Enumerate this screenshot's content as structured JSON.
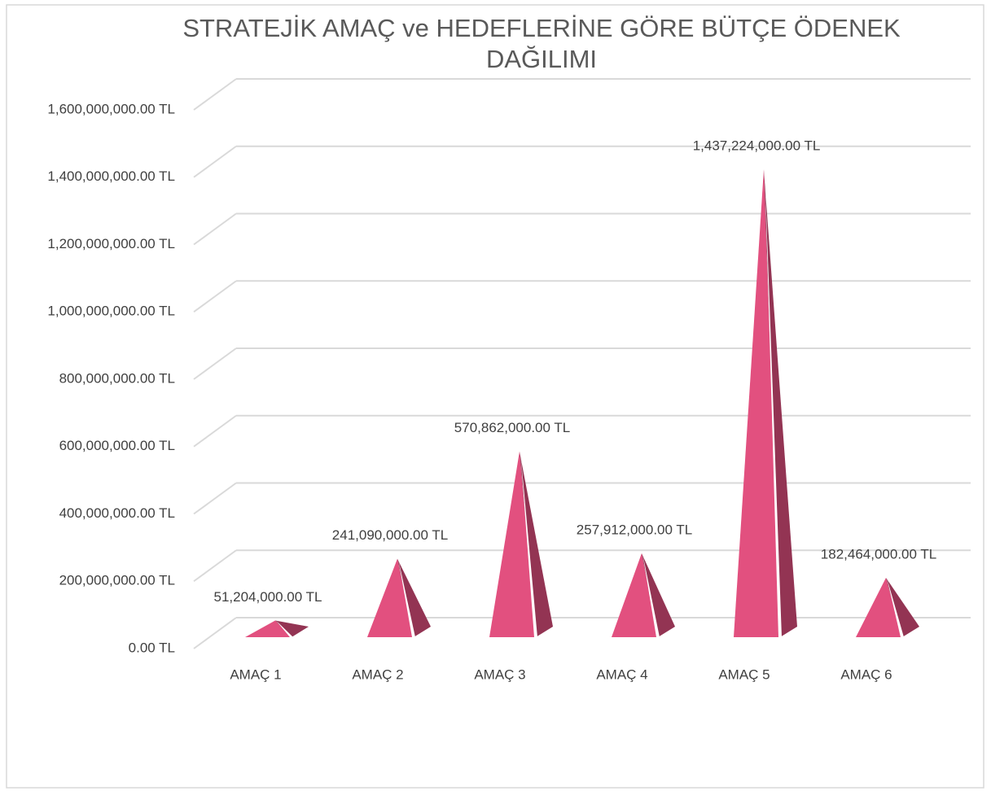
{
  "chart_data": {
    "type": "pyramid",
    "title": "STRATEJİK AMAÇ ve HEDEFLERİNE GÖRE BÜTÇE ÖDENEK DAĞILIMI",
    "categories": [
      "AMAÇ 1",
      "AMAÇ 2",
      "AMAÇ 3",
      "AMAÇ 4",
      "AMAÇ 5",
      "AMAÇ 6"
    ],
    "values": [
      51204000,
      241090000,
      570862000,
      257912000,
      1437224000,
      182464000
    ],
    "value_labels": [
      "51,204,000.00 TL",
      "241,090,000.00 TL",
      "570,862,000.00 TL",
      "257,912,000.00 TL",
      "1,437,224,000.00 TL",
      "182,464,000.00 TL"
    ],
    "color": "#e2507f",
    "ylim": [
      0,
      1600000000
    ],
    "yticks": [
      {
        "value": 0,
        "label": "0.00 TL"
      },
      {
        "value": 200000000,
        "label": "200,000,000.00 TL"
      },
      {
        "value": 400000000,
        "label": "400,000,000.00 TL"
      },
      {
        "value": 600000000,
        "label": "600,000,000.00 TL"
      },
      {
        "value": 800000000,
        "label": "800,000,000.00 TL"
      },
      {
        "value": 1000000000,
        "label": "1,000,000,000.00 TL"
      },
      {
        "value": 1200000000,
        "label": "1,200,000,000.00 TL"
      },
      {
        "value": 1400000000,
        "label": "1,400,000,000.00 TL"
      },
      {
        "value": 1600000000,
        "label": "1,600,000,000.00 TL"
      }
    ],
    "grid": true
  }
}
